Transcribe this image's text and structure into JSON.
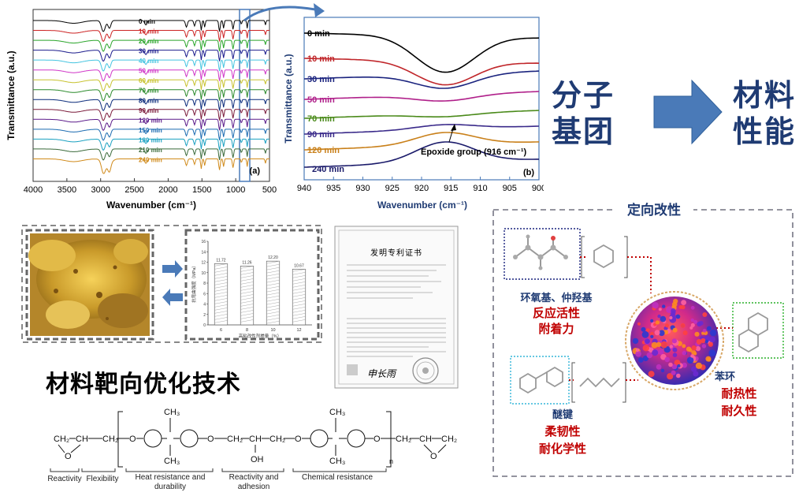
{
  "chart_a": {
    "panel_label": "(a)",
    "xlabel": "Wavenumber (cm⁻¹)",
    "ylabel": "Transmittance (a.u.)",
    "x_ticks": [
      "4000",
      "3500",
      "3000",
      "2500",
      "2000",
      "1500",
      "1000",
      "500"
    ],
    "series": [
      {
        "name": "0 min",
        "color": "#000000"
      },
      {
        "name": "10 min",
        "color": "#cc2222"
      },
      {
        "name": "20 min",
        "color": "#2aa52a"
      },
      {
        "name": "30 min",
        "color": "#1a1a8c"
      },
      {
        "name": "40 min",
        "color": "#44c4e0"
      },
      {
        "name": "50 min",
        "color": "#d036c8"
      },
      {
        "name": "60 min",
        "color": "#c7c22e"
      },
      {
        "name": "70 min",
        "color": "#2a8a2a"
      },
      {
        "name": "80 min",
        "color": "#0a2a7a"
      },
      {
        "name": "90 min",
        "color": "#7a1a3a"
      },
      {
        "name": "120 min",
        "color": "#5a1a8a"
      },
      {
        "name": "150 min",
        "color": "#1a6ab0"
      },
      {
        "name": "180 min",
        "color": "#1aa0c0"
      },
      {
        "name": "210 min",
        "color": "#3a6a3a"
      },
      {
        "name": "240 min",
        "color": "#d08a1a"
      }
    ]
  },
  "chart_b": {
    "panel_label": "(b)",
    "xlabel": "Wavenumber (cm⁻¹)",
    "ylabel": "Transmittance (a.u.)",
    "x_ticks": [
      "940",
      "935",
      "930",
      "925",
      "920",
      "915",
      "910",
      "905",
      "900"
    ],
    "annotation": "Epoxide group (916 cm⁻¹)",
    "series": [
      {
        "name": "0 min",
        "color": "#000000"
      },
      {
        "name": "10 min",
        "color": "#c0262a"
      },
      {
        "name": "30 min",
        "color": "#1a237e"
      },
      {
        "name": "50 min",
        "color": "#b0208a"
      },
      {
        "name": "70 min",
        "color": "#4a8a1a"
      },
      {
        "name": "90 min",
        "color": "#3a2a8a"
      },
      {
        "name": "120 min",
        "color": "#c9801a"
      },
      {
        "name": "240 min",
        "color": "#1a1a6a"
      }
    ]
  },
  "flow": {
    "left": [
      "分子",
      "基团"
    ],
    "right": [
      "材料",
      "性能"
    ]
  },
  "bar_chart": {
    "ylabel": "抗弯曲强度（MPa）",
    "xlabel": "高粘改性剂掺量（%）",
    "categories": [
      "6",
      "8",
      "10",
      "12"
    ],
    "values": [
      11.72,
      11.26,
      12.2,
      10.67
    ],
    "value_labels": [
      "11.72",
      "11.26",
      "12.20",
      "10.67"
    ],
    "y_ticks": [
      "0",
      "2",
      "4",
      "6",
      "8",
      "10",
      "12",
      "14",
      "16"
    ],
    "ylim": [
      0,
      16
    ]
  },
  "patent": {
    "title": "发明专利证书",
    "signature": "申长雨"
  },
  "main_title": "材料靶向优化技术",
  "structure": {
    "ch3": "CH₃",
    "ch2": "CH₂",
    "ch": "CH",
    "o": "O",
    "oh": "OH",
    "n": "n",
    "labels": [
      "Reactivity",
      "Flexibility",
      "Heat resistance and",
      "durability",
      "Reactivity and",
      "adhesion",
      "Chemical resistance"
    ]
  },
  "modification": {
    "title": "定向改性",
    "groups": [
      {
        "name": "环氧基、仲羟基",
        "props": [
          "反应活性",
          "附着力"
        ]
      },
      {
        "name": "醚键",
        "props": [
          "柔韧性",
          "耐化学性"
        ]
      },
      {
        "name": "苯环",
        "props": [
          "耐热性",
          "耐久性"
        ]
      }
    ]
  },
  "colors": {
    "accent_blue": "#1f3b73",
    "arrow_blue": "#4a7ab8",
    "prop_red": "#c00000",
    "frame_gray": "#888888"
  }
}
